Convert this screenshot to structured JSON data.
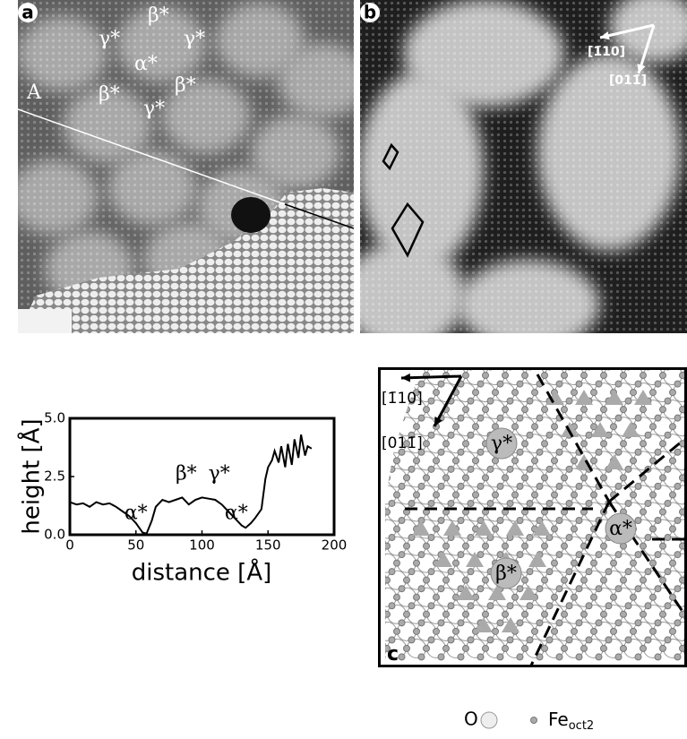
{
  "panel_a": {
    "label": "a",
    "line_label": "A",
    "sites": [
      "γ*",
      "β*",
      "γ*",
      "α*",
      "β*",
      "γ*",
      "β*"
    ]
  },
  "panel_b": {
    "label": "b",
    "dir1": "[1̄10]",
    "dir2": "[011̄]"
  },
  "panel_c": {
    "label": "c",
    "dir1": "[1̄10]",
    "dir2": "[011̄]",
    "sites": [
      "γ*",
      "α*",
      "β*"
    ]
  },
  "legend": {
    "o": "O",
    "fe": "Fe",
    "fe_sub": "oct2"
  },
  "chart_data": {
    "type": "line",
    "x_label": "distance [Å]",
    "y_label": "height [Å]",
    "x": [
      0,
      5,
      10,
      15,
      20,
      25,
      30,
      35,
      40,
      45,
      50,
      55,
      58,
      62,
      65,
      70,
      75,
      80,
      85,
      90,
      95,
      100,
      105,
      110,
      115,
      120,
      125,
      130,
      133,
      137,
      140,
      145,
      148,
      150,
      153,
      155,
      158,
      160,
      163,
      165,
      168,
      170,
      173,
      175,
      178,
      180,
      183
    ],
    "values": [
      1.4,
      1.3,
      1.35,
      1.2,
      1.4,
      1.3,
      1.35,
      1.2,
      1.0,
      0.8,
      0.5,
      0.1,
      0.05,
      0.6,
      1.2,
      1.5,
      1.4,
      1.5,
      1.6,
      1.3,
      1.5,
      1.6,
      1.55,
      1.5,
      1.3,
      1.0,
      0.7,
      0.4,
      0.3,
      0.5,
      0.7,
      1.1,
      2.4,
      2.9,
      3.2,
      3.6,
      3.1,
      3.8,
      2.9,
      3.9,
      3.0,
      4.1,
      3.3,
      4.3,
      3.4,
      3.8,
      3.7
    ],
    "color": "#000000",
    "xlim": [
      0,
      200
    ],
    "ylim": [
      0,
      5
    ],
    "xticks": [
      0,
      50,
      100,
      150,
      200
    ],
    "yticks": [
      {
        "value": 0,
        "label": "0.0"
      },
      {
        "value": 2.5,
        "label": "2.5"
      },
      {
        "value": 5,
        "label": "5.0"
      }
    ],
    "annotations": [
      "α*",
      "β*",
      "γ*",
      "α*"
    ]
  }
}
